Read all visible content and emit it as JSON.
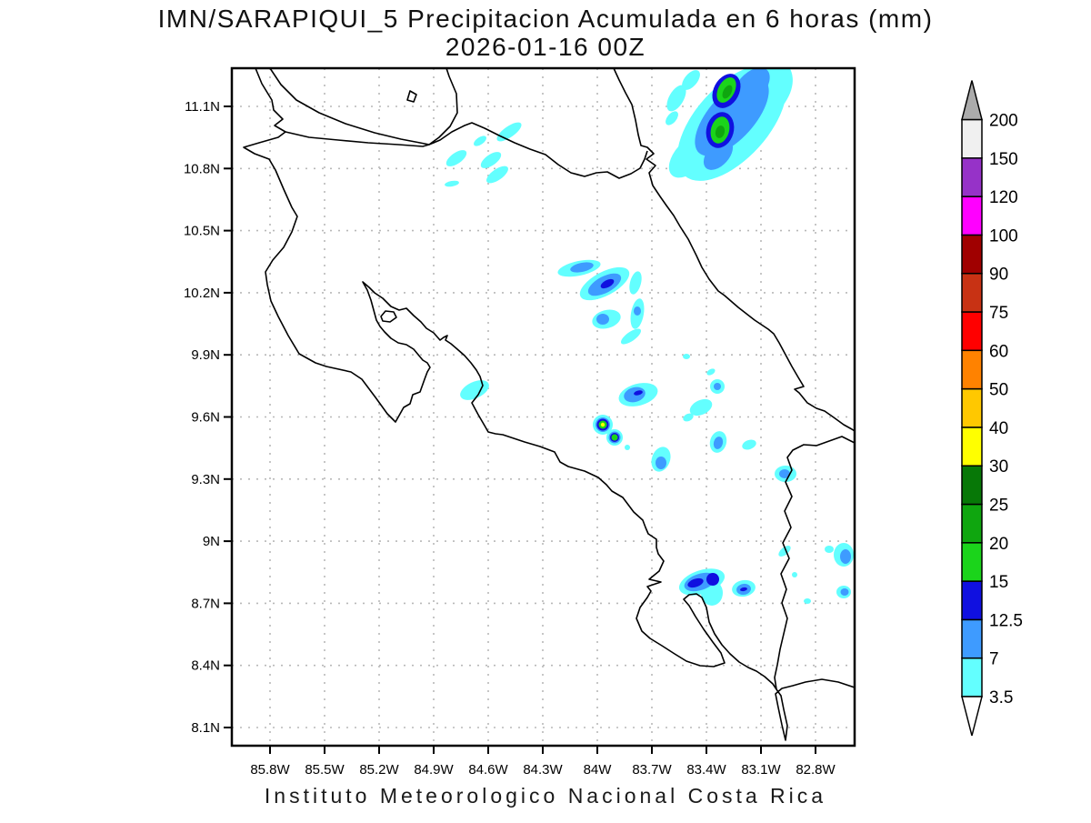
{
  "title": {
    "line1": "IMN/SARAPIQUI_5 Precipitacion Acumulada en 6 horas (mm)",
    "line2": "2026-01-16 00Z"
  },
  "footer": "Instituto Meteorologico Nacional Costa Rica",
  "axes": {
    "lat_labels": [
      "11.1N",
      "10.8N",
      "10.5N",
      "10.2N",
      "9.9N",
      "9.6N",
      "9.3N",
      "9N",
      "8.7N",
      "8.4N",
      "8.1N"
    ],
    "lon_labels": [
      "85.8W",
      "85.5W",
      "85.2W",
      "84.9W",
      "84.6W",
      "84.3W",
      "84W",
      "83.7W",
      "83.4W",
      "83.1W",
      "82.8W"
    ]
  },
  "colorbar": {
    "levels": [
      "3.5",
      "7",
      "12.5",
      "15",
      "20",
      "25",
      "30",
      "40",
      "50",
      "60",
      "75",
      "90",
      "100",
      "120",
      "150",
      "200"
    ],
    "segment_colors": [
      "#63FFFF",
      "#3E9BFF",
      "#1010E0",
      "#1BD41B",
      "#0FA60F",
      "#077807",
      "#FFFF00",
      "#FFC800",
      "#FF8200",
      "#FF0000",
      "#C83214",
      "#A00000",
      "#FF00FF",
      "#9632C8",
      "#F0F0F0"
    ],
    "above_color": "#ABABAB",
    "below_color": "#FFFFFF",
    "units": "mm"
  },
  "map": {
    "coast_color": "#000000",
    "grid_color": "#b8b8b8",
    "frame_color": "#000000",
    "precip_palette": {
      "cyan_3_5": "#63FFFF",
      "blue_7": "#3E9BFF",
      "dark_blue_12_5": "#1010E0",
      "green_15": "#1BD41B",
      "green_20": "#0FA60F",
      "dark_green_25": "#077807",
      "yellow_30": "#FFFF00"
    }
  }
}
